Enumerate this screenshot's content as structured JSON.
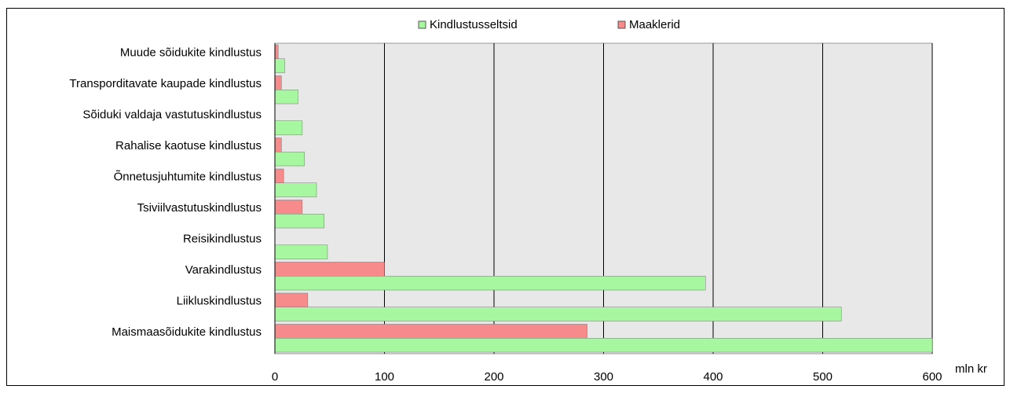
{
  "chart_data": {
    "type": "hbar",
    "x_label": "mln kr",
    "categories": [
      "Muude sõidukite kindlustus",
      "Transporditavate kaupade kindlustus",
      "Sõiduki valdaja vastutuskindlustus",
      "Rahalise kaotuse kindlustus",
      "Õnnetusjuhtumite kindlustus",
      "Tsiviilvastutuskindlustus",
      "Reisikindlustus",
      "Varakindlustus",
      "Liikluskindlustus",
      "Maismaasõidukite kindlustus"
    ],
    "series": [
      {
        "name": "Kindlustusseltsid",
        "color": "#a6f7a0",
        "values": [
          9,
          21,
          25,
          27,
          38,
          45,
          48,
          393,
          517,
          600
        ]
      },
      {
        "name": "Maaklerid",
        "color": "#f78a8a",
        "values": [
          3,
          6,
          0,
          6,
          8,
          25,
          0,
          100,
          30,
          285
        ]
      }
    ],
    "xlim": [
      0,
      600
    ],
    "xticks": [
      0,
      100,
      200,
      300,
      400,
      500,
      600
    ],
    "grid": true,
    "legend": "top"
  }
}
